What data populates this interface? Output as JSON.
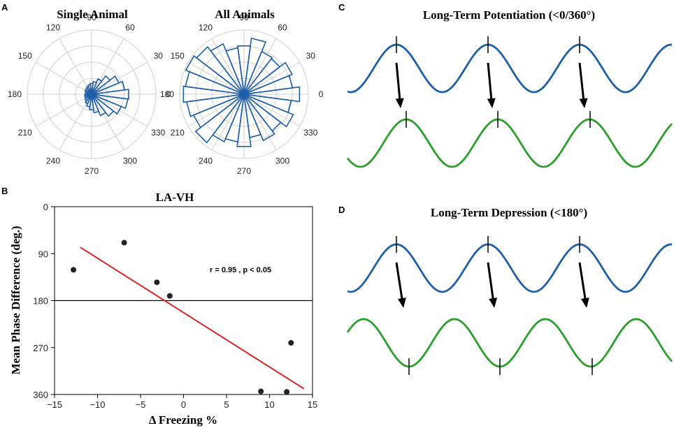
{
  "colors": {
    "blue": "#1f5fa9",
    "green": "#2aa02a",
    "red": "#d62728",
    "grid": "#cfcfcf",
    "black": "#000000"
  },
  "panel_letters": {
    "a": "A",
    "b": "B",
    "c": "C",
    "d": "D"
  },
  "chart_data": [
    {
      "id": "A1",
      "type": "polar-histogram",
      "title": "Single Animal",
      "angle_labels": [
        "0",
        "30",
        "60",
        "90",
        "120",
        "150",
        "180",
        "210",
        "240",
        "270",
        "300",
        "330"
      ],
      "rmax": 1.0,
      "rings": [
        0.25,
        0.5,
        0.75,
        1.0
      ],
      "bin_width_deg": 15,
      "bins": [
        {
          "angle": 0,
          "r": 0.58
        },
        {
          "angle": 15,
          "r": 0.52
        },
        {
          "angle": 30,
          "r": 0.46
        },
        {
          "angle": 45,
          "r": 0.36
        },
        {
          "angle": 60,
          "r": 0.26
        },
        {
          "angle": 75,
          "r": 0.2
        },
        {
          "angle": 90,
          "r": 0.17
        },
        {
          "angle": 105,
          "r": 0.15
        },
        {
          "angle": 120,
          "r": 0.13
        },
        {
          "angle": 135,
          "r": 0.12
        },
        {
          "angle": 150,
          "r": 0.11
        },
        {
          "angle": 165,
          "r": 0.09
        },
        {
          "angle": 180,
          "r": 0.1
        },
        {
          "angle": 195,
          "r": 0.11
        },
        {
          "angle": 210,
          "r": 0.11
        },
        {
          "angle": 225,
          "r": 0.13
        },
        {
          "angle": 240,
          "r": 0.16
        },
        {
          "angle": 255,
          "r": 0.2
        },
        {
          "angle": 270,
          "r": 0.24
        },
        {
          "angle": 285,
          "r": 0.29
        },
        {
          "angle": 300,
          "r": 0.36
        },
        {
          "angle": 315,
          "r": 0.43
        },
        {
          "angle": 330,
          "r": 0.5
        },
        {
          "angle": 345,
          "r": 0.57
        }
      ]
    },
    {
      "id": "A2",
      "type": "polar-histogram",
      "title": "All Animals",
      "angle_labels": [
        "0",
        "30",
        "60",
        "90",
        "120",
        "150",
        "180",
        "210",
        "240",
        "270",
        "300",
        "330"
      ],
      "rmax": 1.0,
      "rings": [
        0.25,
        0.5,
        0.75,
        1.0
      ],
      "bin_width_deg": 15,
      "bins": [
        {
          "angle": 0,
          "r": 0.87
        },
        {
          "angle": 15,
          "r": 0.76
        },
        {
          "angle": 30,
          "r": 0.81
        },
        {
          "angle": 45,
          "r": 0.7
        },
        {
          "angle": 60,
          "r": 0.72
        },
        {
          "angle": 75,
          "r": 0.88
        },
        {
          "angle": 90,
          "r": 0.76
        },
        {
          "angle": 105,
          "r": 0.73
        },
        {
          "angle": 120,
          "r": 0.85
        },
        {
          "angle": 135,
          "r": 0.93
        },
        {
          "angle": 150,
          "r": 0.98
        },
        {
          "angle": 165,
          "r": 0.92
        },
        {
          "angle": 180,
          "r": 0.95
        },
        {
          "angle": 195,
          "r": 0.9
        },
        {
          "angle": 210,
          "r": 0.85
        },
        {
          "angle": 225,
          "r": 0.95
        },
        {
          "angle": 240,
          "r": 0.8
        },
        {
          "angle": 255,
          "r": 0.75
        },
        {
          "angle": 270,
          "r": 0.82
        },
        {
          "angle": 285,
          "r": 0.68
        },
        {
          "angle": 300,
          "r": 0.78
        },
        {
          "angle": 315,
          "r": 0.72
        },
        {
          "angle": 330,
          "r": 0.83
        },
        {
          "angle": 345,
          "r": 0.74
        }
      ]
    },
    {
      "id": "B",
      "type": "scatter",
      "title": "LA-VH",
      "xlabel": "Δ Freezing %",
      "ylabel": "Mean Phase Difference (deg.)",
      "xlim": [
        -15,
        15
      ],
      "ylim": [
        360,
        0
      ],
      "xticks": [
        -15,
        -10,
        -5,
        0,
        5,
        10,
        15
      ],
      "yticks": [
        0,
        90,
        180,
        270,
        360
      ],
      "xtick_labels": [
        "−15",
        "−10",
        "−5",
        "0",
        "5",
        "10",
        "15"
      ],
      "ytick_labels": [
        "0",
        "90",
        "180",
        "270",
        "360"
      ],
      "points": [
        {
          "x": -12.8,
          "y": 121
        },
        {
          "x": -6.9,
          "y": 69
        },
        {
          "x": -3.1,
          "y": 145
        },
        {
          "x": -1.6,
          "y": 171
        },
        {
          "x": 9.0,
          "y": 354
        },
        {
          "x": 12.0,
          "y": 355
        },
        {
          "x": 12.5,
          "y": 261
        }
      ],
      "fit_line": {
        "x": [
          -12,
          14
        ],
        "y": [
          78,
          349
        ]
      },
      "reference_line_y": 180,
      "annotation": "r = 0.95 , p < 0.05"
    },
    {
      "id": "C",
      "type": "line",
      "title": "Long-Term Potentiation (<0/360°)",
      "series": [
        {
          "name": "blue wave",
          "color": "#1f5fa9",
          "peaks": [
            567,
            698,
            829
          ]
        },
        {
          "name": "green wave",
          "color": "#2aa02a",
          "peaks": [
            581,
            712,
            844
          ]
        }
      ],
      "arrows": 3
    },
    {
      "id": "D",
      "type": "line",
      "title": "Long-Term Depression (<180°)",
      "series": [
        {
          "name": "blue wave",
          "color": "#1f5fa9",
          "peaks": [
            567,
            698,
            829
          ]
        },
        {
          "name": "green wave",
          "color": "#2aa02a",
          "troughs": [
            585,
            715,
            847
          ]
        }
      ],
      "arrows": 3
    }
  ]
}
